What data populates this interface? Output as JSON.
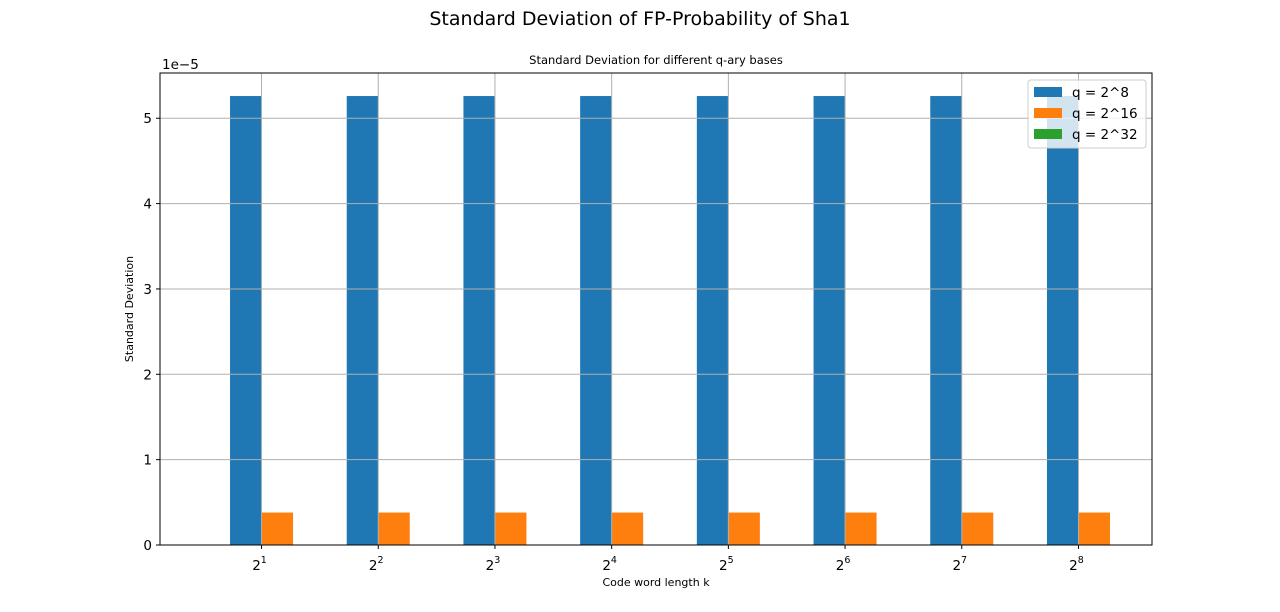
{
  "figure": {
    "suptitle": "Standard Deviation of FP-Probability of Sha1"
  },
  "chart_data": {
    "type": "bar",
    "title": "Standard Deviation for different q-ary bases",
    "xlabel": "Code word length k",
    "ylabel": "Standard Deviation",
    "y_offset_label": "1e−5",
    "categories": [
      {
        "base": "2",
        "exp": "1"
      },
      {
        "base": "2",
        "exp": "2"
      },
      {
        "base": "2",
        "exp": "3"
      },
      {
        "base": "2",
        "exp": "4"
      },
      {
        "base": "2",
        "exp": "5"
      },
      {
        "base": "2",
        "exp": "6"
      },
      {
        "base": "2",
        "exp": "7"
      },
      {
        "base": "2",
        "exp": "8"
      }
    ],
    "yticks": [
      0,
      1,
      2,
      3,
      4,
      5
    ],
    "ylim": [
      0,
      5.53
    ],
    "y_scale_note": "values in units of 1e-5",
    "grid": true,
    "legend_position": "top-right",
    "series": [
      {
        "name": "q = 2^8",
        "color": "#1f77b4",
        "values": [
          5.26,
          5.26,
          5.26,
          5.26,
          5.26,
          5.26,
          5.26,
          5.26
        ]
      },
      {
        "name": "q = 2^16",
        "color": "#ff7f0e",
        "values": [
          0.38,
          0.38,
          0.38,
          0.38,
          0.38,
          0.38,
          0.38,
          0.38
        ]
      },
      {
        "name": "q = 2^32",
        "color": "#2ca02c",
        "values": [
          0,
          0,
          0,
          0,
          0,
          0,
          0,
          0
        ]
      }
    ]
  }
}
